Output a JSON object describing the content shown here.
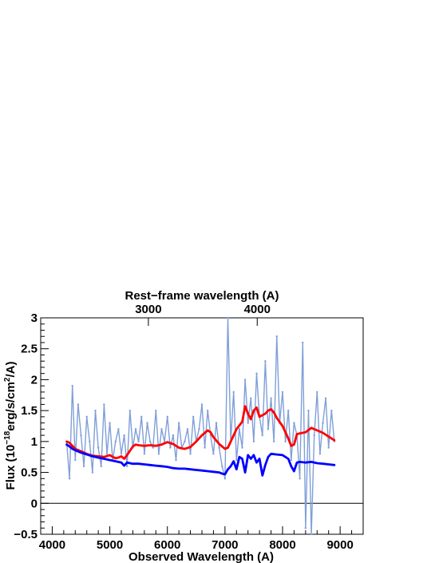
{
  "chart_data": {
    "type": "line",
    "title": "",
    "xlabel": "Observed Wavelength (A)",
    "ylabel": {
      "prefix": "Flux (10",
      "exp1": "−18",
      "mid": "erg/s/cm",
      "exp2": "2",
      "suffix": "/A)"
    },
    "top_axis_label": "Rest−frame wavelength (A)",
    "xlim": [
      3800,
      9400
    ],
    "ylim": [
      -0.5,
      3.0
    ],
    "x_ticks": [
      4000,
      5000,
      6000,
      7000,
      8000,
      9000
    ],
    "y_ticks": [
      -0.5,
      0,
      0.5,
      1,
      1.5,
      2,
      2.5,
      3
    ],
    "y_tick_labels": [
      "−0.5",
      "0",
      "0.5",
      "1",
      "1.5",
      "2",
      "2.5",
      "3"
    ],
    "top_axis": {
      "ticks": [
        {
          "label": "3000",
          "observed": 5670
        },
        {
          "label": "4000",
          "observed": 7560
        }
      ]
    },
    "zero_line": 0,
    "grid": false,
    "series": [
      {
        "color": "#7f9fd8",
        "style": "noisy-band",
        "x": [
          4250,
          4300,
          4350,
          4400,
          4450,
          4500,
          4550,
          4600,
          4650,
          4700,
          4750,
          4800,
          4850,
          4900,
          4950,
          5000,
          5050,
          5100,
          5150,
          5200,
          5250,
          5300,
          5350,
          5400,
          5450,
          5500,
          5550,
          5600,
          5650,
          5700,
          5750,
          5800,
          5850,
          5900,
          5950,
          6000,
          6050,
          6100,
          6150,
          6200,
          6250,
          6300,
          6350,
          6400,
          6450,
          6500,
          6550,
          6600,
          6650,
          6700,
          6750,
          6800,
          6850,
          6900,
          6950,
          7000,
          7050,
          7100,
          7150,
          7200,
          7250,
          7300,
          7350,
          7400,
          7450,
          7500,
          7550,
          7600,
          7650,
          7700,
          7750,
          7800,
          7850,
          7900,
          7950,
          8000,
          8050,
          8100,
          8150,
          8200,
          8250,
          8300,
          8350,
          8400,
          8450,
          8500,
          8550,
          8600,
          8650,
          8700,
          8750,
          8800,
          8850,
          8900
        ],
        "values": [
          1.0,
          0.4,
          1.9,
          0.7,
          1.6,
          1.1,
          0.6,
          1.4,
          1.0,
          0.5,
          1.5,
          0.9,
          0.6,
          1.6,
          0.8,
          1.3,
          0.7,
          1.0,
          1.2,
          0.8,
          1.1,
          0.6,
          1.5,
          0.9,
          1.2,
          1.0,
          1.4,
          0.8,
          1.3,
          1.0,
          0.9,
          1.5,
          0.8,
          1.2,
          1.0,
          1.4,
          0.9,
          1.1,
          0.7,
          1.3,
          0.9,
          1.0,
          1.2,
          0.8,
          1.4,
          1.0,
          1.2,
          1.6,
          0.9,
          1.5,
          1.1,
          0.8,
          1.3,
          0.9,
          0.6,
          0.4,
          3.0,
          1.0,
          1.8,
          0.7,
          1.2,
          0.9,
          2.0,
          1.3,
          1.7,
          1.0,
          2.1,
          1.4,
          1.1,
          2.3,
          1.2,
          1.7,
          1.0,
          2.7,
          1.3,
          1.8,
          1.0,
          1.5,
          0.7,
          1.3,
          1.1,
          0.4,
          2.6,
          -0.4,
          1.5,
          -0.5,
          1.1,
          1.8,
          0.8,
          1.3,
          1.7,
          0.9,
          1.5,
          1.0
        ]
      },
      {
        "color": "#ff0000",
        "style": "smooth",
        "x": [
          4250,
          4300,
          4350,
          4400,
          4500,
          4600,
          4700,
          4800,
          4900,
          5000,
          5050,
          5100,
          5150,
          5200,
          5250,
          5300,
          5350,
          5400,
          5450,
          5500,
          5600,
          5700,
          5800,
          5900,
          6000,
          6100,
          6200,
          6300,
          6400,
          6500,
          6600,
          6700,
          6750,
          6800,
          6900,
          7000,
          7050,
          7100,
          7200,
          7300,
          7350,
          7400,
          7450,
          7500,
          7550,
          7600,
          7700,
          7750,
          7800,
          7850,
          7900,
          8000,
          8100,
          8150,
          8200,
          8250,
          8300,
          8400,
          8500,
          8600,
          8700,
          8800,
          8900
        ],
        "values": [
          1.0,
          0.98,
          0.93,
          0.88,
          0.84,
          0.8,
          0.77,
          0.76,
          0.75,
          0.78,
          0.75,
          0.73,
          0.74,
          0.76,
          0.72,
          0.78,
          0.85,
          0.92,
          0.95,
          0.94,
          0.93,
          0.94,
          0.93,
          0.95,
          0.99,
          0.96,
          0.9,
          0.88,
          0.91,
          1.0,
          1.1,
          1.18,
          1.15,
          1.07,
          0.96,
          0.88,
          0.9,
          1.0,
          1.2,
          1.32,
          1.57,
          1.45,
          1.36,
          1.5,
          1.55,
          1.4,
          1.45,
          1.5,
          1.52,
          1.47,
          1.38,
          1.25,
          1.05,
          0.93,
          0.95,
          1.12,
          1.13,
          1.15,
          1.22,
          1.18,
          1.14,
          1.08,
          1.02
        ]
      },
      {
        "color": "#0000ff",
        "style": "smooth",
        "x": [
          4250,
          4300,
          4350,
          4400,
          4500,
          4600,
          4700,
          4800,
          4900,
          5000,
          5100,
          5200,
          5250,
          5300,
          5400,
          5500,
          5600,
          5700,
          5800,
          5900,
          6000,
          6100,
          6200,
          6300,
          6400,
          6500,
          6600,
          6700,
          6800,
          6900,
          6950,
          7000,
          7050,
          7100,
          7150,
          7200,
          7250,
          7300,
          7350,
          7400,
          7450,
          7500,
          7550,
          7600,
          7650,
          7700,
          7750,
          7800,
          7900,
          8000,
          8100,
          8150,
          8200,
          8250,
          8300,
          8400,
          8500,
          8600,
          8700,
          8800,
          8900
        ],
        "values": [
          0.95,
          0.92,
          0.88,
          0.86,
          0.82,
          0.79,
          0.76,
          0.74,
          0.72,
          0.7,
          0.68,
          0.66,
          0.61,
          0.66,
          0.64,
          0.64,
          0.63,
          0.62,
          0.61,
          0.6,
          0.59,
          0.57,
          0.56,
          0.56,
          0.55,
          0.54,
          0.53,
          0.52,
          0.51,
          0.5,
          0.48,
          0.47,
          0.55,
          0.6,
          0.68,
          0.55,
          0.75,
          0.72,
          0.5,
          0.78,
          0.72,
          0.78,
          0.66,
          0.72,
          0.45,
          0.62,
          0.75,
          0.8,
          0.79,
          0.78,
          0.72,
          0.6,
          0.52,
          0.66,
          0.67,
          0.66,
          0.67,
          0.65,
          0.64,
          0.63,
          0.62
        ]
      }
    ]
  }
}
